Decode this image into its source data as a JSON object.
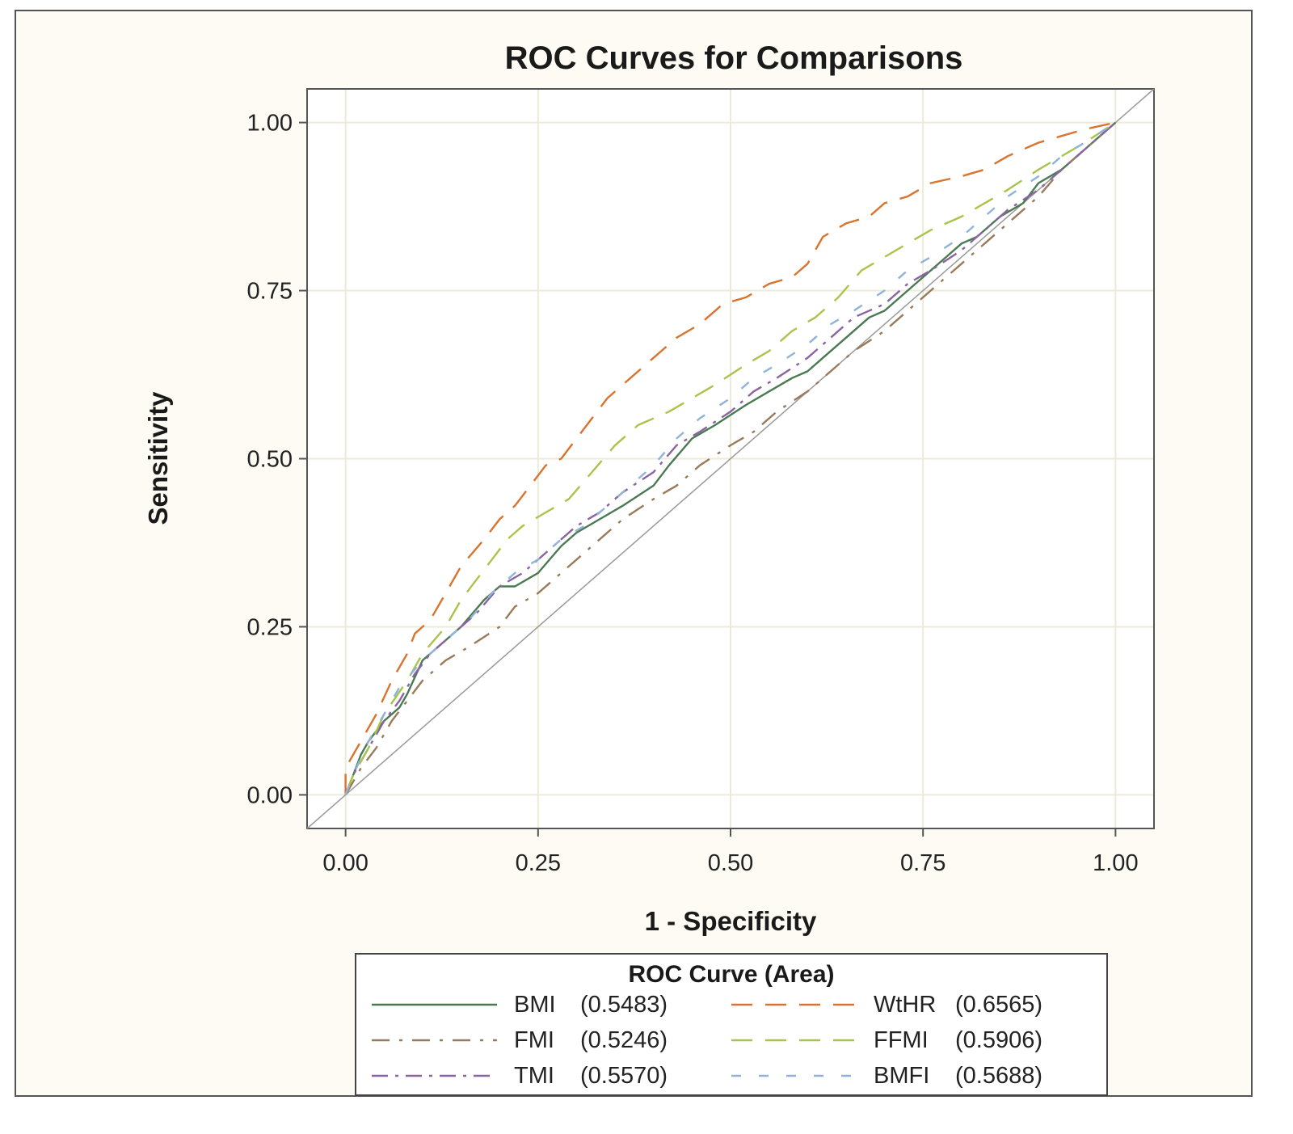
{
  "chart_data": {
    "type": "line",
    "title": "ROC Curves for Comparisons",
    "xlabel": "1 - Specificity",
    "ylabel": "Sensitivity",
    "xlim": [
      -0.05,
      1.05
    ],
    "ylim": [
      -0.05,
      1.05
    ],
    "xticks": [
      "0.00",
      "0.25",
      "0.50",
      "0.75",
      "1.00"
    ],
    "yticks": [
      "0.00",
      "0.25",
      "0.50",
      "0.75",
      "1.00"
    ],
    "grid": true,
    "reference_line": true,
    "legend": {
      "title": "ROC Curve (Area)",
      "placement": "bottom"
    },
    "series": [
      {
        "name": "BMI",
        "area": "(0.5483)",
        "color": "#4a7a52",
        "dash": "solid",
        "points": [
          [
            0,
            0
          ],
          [
            0.01,
            0.03
          ],
          [
            0.02,
            0.06
          ],
          [
            0.03,
            0.08
          ],
          [
            0.05,
            0.11
          ],
          [
            0.07,
            0.13
          ],
          [
            0.08,
            0.15
          ],
          [
            0.1,
            0.2
          ],
          [
            0.12,
            0.22
          ],
          [
            0.15,
            0.25
          ],
          [
            0.18,
            0.29
          ],
          [
            0.2,
            0.31
          ],
          [
            0.22,
            0.31
          ],
          [
            0.25,
            0.33
          ],
          [
            0.28,
            0.37
          ],
          [
            0.3,
            0.39
          ],
          [
            0.33,
            0.41
          ],
          [
            0.36,
            0.43
          ],
          [
            0.4,
            0.46
          ],
          [
            0.42,
            0.49
          ],
          [
            0.45,
            0.53
          ],
          [
            0.48,
            0.55
          ],
          [
            0.52,
            0.58
          ],
          [
            0.55,
            0.6
          ],
          [
            0.58,
            0.62
          ],
          [
            0.6,
            0.63
          ],
          [
            0.62,
            0.65
          ],
          [
            0.65,
            0.68
          ],
          [
            0.68,
            0.71
          ],
          [
            0.7,
            0.72
          ],
          [
            0.72,
            0.74
          ],
          [
            0.75,
            0.77
          ],
          [
            0.78,
            0.8
          ],
          [
            0.8,
            0.82
          ],
          [
            0.82,
            0.83
          ],
          [
            0.85,
            0.86
          ],
          [
            0.88,
            0.88
          ],
          [
            0.9,
            0.91
          ],
          [
            0.93,
            0.93
          ],
          [
            0.96,
            0.96
          ],
          [
            0.98,
            0.98
          ],
          [
            1,
            1
          ]
        ]
      },
      {
        "name": "FMI",
        "area": "(0.5246)",
        "color": "#9b7a5a",
        "dash": "dashdot",
        "points": [
          [
            0,
            0
          ],
          [
            0.01,
            0.02
          ],
          [
            0.02,
            0.04
          ],
          [
            0.04,
            0.07
          ],
          [
            0.06,
            0.11
          ],
          [
            0.08,
            0.14
          ],
          [
            0.1,
            0.17
          ],
          [
            0.13,
            0.2
          ],
          [
            0.16,
            0.22
          ],
          [
            0.2,
            0.25
          ],
          [
            0.22,
            0.28
          ],
          [
            0.25,
            0.3
          ],
          [
            0.28,
            0.33
          ],
          [
            0.3,
            0.35
          ],
          [
            0.33,
            0.38
          ],
          [
            0.36,
            0.41
          ],
          [
            0.4,
            0.44
          ],
          [
            0.43,
            0.46
          ],
          [
            0.46,
            0.49
          ],
          [
            0.5,
            0.52
          ],
          [
            0.53,
            0.54
          ],
          [
            0.56,
            0.57
          ],
          [
            0.6,
            0.6
          ],
          [
            0.63,
            0.63
          ],
          [
            0.66,
            0.66
          ],
          [
            0.7,
            0.69
          ],
          [
            0.73,
            0.72
          ],
          [
            0.76,
            0.75
          ],
          [
            0.8,
            0.79
          ],
          [
            0.83,
            0.82
          ],
          [
            0.86,
            0.85
          ],
          [
            0.9,
            0.89
          ],
          [
            0.93,
            0.93
          ],
          [
            0.96,
            0.96
          ],
          [
            1,
            1
          ]
        ]
      },
      {
        "name": "TMI",
        "area": "(0.5570)",
        "color": "#8a64a0",
        "dash": "longdashdot",
        "points": [
          [
            0,
            0
          ],
          [
            0.01,
            0.03
          ],
          [
            0.03,
            0.07
          ],
          [
            0.05,
            0.11
          ],
          [
            0.07,
            0.14
          ],
          [
            0.09,
            0.18
          ],
          [
            0.11,
            0.21
          ],
          [
            0.14,
            0.24
          ],
          [
            0.17,
            0.27
          ],
          [
            0.2,
            0.31
          ],
          [
            0.23,
            0.33
          ],
          [
            0.26,
            0.36
          ],
          [
            0.3,
            0.4
          ],
          [
            0.33,
            0.42
          ],
          [
            0.36,
            0.45
          ],
          [
            0.4,
            0.48
          ],
          [
            0.43,
            0.52
          ],
          [
            0.46,
            0.54
          ],
          [
            0.5,
            0.57
          ],
          [
            0.53,
            0.6
          ],
          [
            0.56,
            0.62
          ],
          [
            0.6,
            0.65
          ],
          [
            0.63,
            0.68
          ],
          [
            0.66,
            0.71
          ],
          [
            0.7,
            0.73
          ],
          [
            0.73,
            0.76
          ],
          [
            0.76,
            0.78
          ],
          [
            0.8,
            0.81
          ],
          [
            0.83,
            0.84
          ],
          [
            0.86,
            0.87
          ],
          [
            0.9,
            0.9
          ],
          [
            0.93,
            0.93
          ],
          [
            0.96,
            0.96
          ],
          [
            1,
            1
          ]
        ]
      },
      {
        "name": "WtHR",
        "area": "(0.6565)",
        "color": "#d9742e",
        "dash": "longdash",
        "points": [
          [
            0,
            0
          ],
          [
            0,
            0.04
          ],
          [
            0.01,
            0.06
          ],
          [
            0.02,
            0.08
          ],
          [
            0.04,
            0.12
          ],
          [
            0.06,
            0.17
          ],
          [
            0.08,
            0.21
          ],
          [
            0.09,
            0.24
          ],
          [
            0.11,
            0.26
          ],
          [
            0.13,
            0.3
          ],
          [
            0.15,
            0.34
          ],
          [
            0.18,
            0.38
          ],
          [
            0.2,
            0.41
          ],
          [
            0.22,
            0.43
          ],
          [
            0.24,
            0.46
          ],
          [
            0.26,
            0.49
          ],
          [
            0.28,
            0.5
          ],
          [
            0.3,
            0.53
          ],
          [
            0.32,
            0.56
          ],
          [
            0.34,
            0.59
          ],
          [
            0.37,
            0.62
          ],
          [
            0.4,
            0.65
          ],
          [
            0.43,
            0.68
          ],
          [
            0.46,
            0.7
          ],
          [
            0.49,
            0.73
          ],
          [
            0.52,
            0.74
          ],
          [
            0.55,
            0.76
          ],
          [
            0.58,
            0.77
          ],
          [
            0.6,
            0.79
          ],
          [
            0.62,
            0.83
          ],
          [
            0.65,
            0.85
          ],
          [
            0.68,
            0.86
          ],
          [
            0.7,
            0.88
          ],
          [
            0.73,
            0.89
          ],
          [
            0.76,
            0.91
          ],
          [
            0.8,
            0.92
          ],
          [
            0.83,
            0.93
          ],
          [
            0.86,
            0.95
          ],
          [
            0.9,
            0.97
          ],
          [
            0.93,
            0.98
          ],
          [
            0.96,
            0.99
          ],
          [
            1,
            1
          ]
        ]
      },
      {
        "name": "FFMI",
        "area": "(0.5906)",
        "color": "#a8c44a",
        "dash": "longdash",
        "points": [
          [
            0,
            0
          ],
          [
            0.01,
            0.03
          ],
          [
            0.03,
            0.07
          ],
          [
            0.05,
            0.12
          ],
          [
            0.08,
            0.17
          ],
          [
            0.1,
            0.21
          ],
          [
            0.13,
            0.25
          ],
          [
            0.15,
            0.29
          ],
          [
            0.17,
            0.32
          ],
          [
            0.19,
            0.35
          ],
          [
            0.21,
            0.38
          ],
          [
            0.23,
            0.4
          ],
          [
            0.26,
            0.42
          ],
          [
            0.29,
            0.44
          ],
          [
            0.32,
            0.48
          ],
          [
            0.35,
            0.52
          ],
          [
            0.38,
            0.55
          ],
          [
            0.42,
            0.57
          ],
          [
            0.45,
            0.59
          ],
          [
            0.48,
            0.61
          ],
          [
            0.52,
            0.64
          ],
          [
            0.55,
            0.66
          ],
          [
            0.58,
            0.69
          ],
          [
            0.61,
            0.71
          ],
          [
            0.64,
            0.74
          ],
          [
            0.67,
            0.78
          ],
          [
            0.7,
            0.8
          ],
          [
            0.73,
            0.82
          ],
          [
            0.76,
            0.84
          ],
          [
            0.8,
            0.86
          ],
          [
            0.83,
            0.88
          ],
          [
            0.86,
            0.9
          ],
          [
            0.9,
            0.93
          ],
          [
            0.93,
            0.95
          ],
          [
            0.96,
            0.97
          ],
          [
            1,
            1
          ]
        ]
      },
      {
        "name": "BMFI",
        "area": "(0.5688)",
        "color": "#8fb3d9",
        "dash": "dash",
        "points": [
          [
            0,
            0
          ],
          [
            0.01,
            0.03
          ],
          [
            0.03,
            0.08
          ],
          [
            0.05,
            0.12
          ],
          [
            0.07,
            0.16
          ],
          [
            0.1,
            0.2
          ],
          [
            0.13,
            0.23
          ],
          [
            0.16,
            0.26
          ],
          [
            0.19,
            0.3
          ],
          [
            0.22,
            0.33
          ],
          [
            0.25,
            0.35
          ],
          [
            0.28,
            0.38
          ],
          [
            0.31,
            0.4
          ],
          [
            0.34,
            0.43
          ],
          [
            0.37,
            0.46
          ],
          [
            0.4,
            0.49
          ],
          [
            0.43,
            0.53
          ],
          [
            0.46,
            0.56
          ],
          [
            0.5,
            0.59
          ],
          [
            0.53,
            0.62
          ],
          [
            0.56,
            0.64
          ],
          [
            0.6,
            0.67
          ],
          [
            0.63,
            0.7
          ],
          [
            0.66,
            0.72
          ],
          [
            0.7,
            0.75
          ],
          [
            0.73,
            0.78
          ],
          [
            0.76,
            0.8
          ],
          [
            0.8,
            0.83
          ],
          [
            0.83,
            0.86
          ],
          [
            0.86,
            0.89
          ],
          [
            0.9,
            0.92
          ],
          [
            0.93,
            0.95
          ],
          [
            0.96,
            0.97
          ],
          [
            1,
            1
          ]
        ]
      }
    ]
  }
}
